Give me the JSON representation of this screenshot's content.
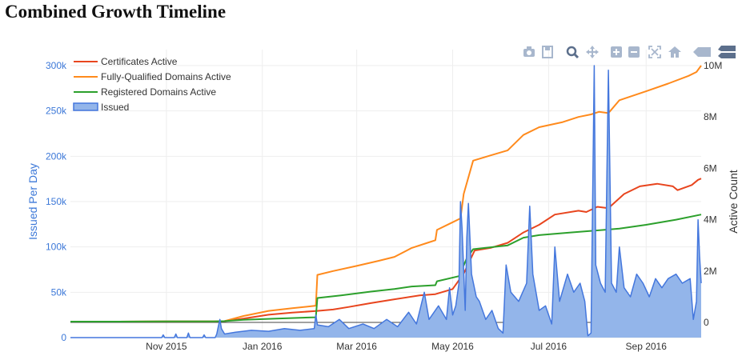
{
  "page": {
    "title": "Combined Growth Timeline"
  },
  "toolbar": {
    "buttons": [
      {
        "name": "camera-icon"
      },
      {
        "name": "save-icon"
      },
      {
        "name": "zoom-icon"
      },
      {
        "name": "pan-icon"
      },
      {
        "name": "zoom-in-icon"
      },
      {
        "name": "zoom-out-icon"
      },
      {
        "name": "autoscale-icon"
      },
      {
        "name": "home-icon"
      },
      {
        "name": "hover-closest-icon"
      },
      {
        "name": "hover-compare-icon"
      }
    ]
  },
  "chart_data": {
    "type": "line",
    "title": "",
    "xlabel": "",
    "ylabel": "Issued Per Day",
    "y2label": "Active Count",
    "x_range": [
      "2015-09-01",
      "2016-10-06"
    ],
    "ylim": [
      0,
      300000
    ],
    "y2lim": [
      -1000000,
      10000000
    ],
    "x_ticks": [
      {
        "date": "2015-11-01",
        "label": "Nov 2015"
      },
      {
        "date": "2016-01-01",
        "label": "Jan 2016"
      },
      {
        "date": "2016-03-01",
        "label": "Mar 2016"
      },
      {
        "date": "2016-05-01",
        "label": "May 2016"
      },
      {
        "date": "2016-07-01",
        "label": "Jul 2016"
      },
      {
        "date": "2016-09-01",
        "label": "Sep 2016"
      }
    ],
    "y_ticks": [
      {
        "value": 0,
        "label": "0"
      },
      {
        "value": 50000,
        "label": "50k"
      },
      {
        "value": 100000,
        "label": "100k"
      },
      {
        "value": 150000,
        "label": "150k"
      },
      {
        "value": 200000,
        "label": "200k"
      },
      {
        "value": 250000,
        "label": "250k"
      },
      {
        "value": 300000,
        "label": "300k"
      }
    ],
    "y2_ticks": [
      {
        "value": 0,
        "label": "0"
      },
      {
        "value": 2000000,
        "label": "2M"
      },
      {
        "value": 4000000,
        "label": "4M"
      },
      {
        "value": 6000000,
        "label": "6M"
      },
      {
        "value": 8000000,
        "label": "8M"
      },
      {
        "value": 10000000,
        "label": "10M"
      }
    ],
    "grid": true,
    "legend_position": "top-left",
    "series": [
      {
        "name": "Certificates Active",
        "axis": "y2",
        "color": "#e8451e",
        "points": [
          [
            "2015-09-01",
            0.03
          ],
          [
            "2015-10-01",
            0.03
          ],
          [
            "2015-11-01",
            0.04
          ],
          [
            "2015-12-01",
            0.04
          ],
          [
            "2015-12-08",
            0.05
          ],
          [
            "2015-12-20",
            0.15
          ],
          [
            "2016-01-05",
            0.3
          ],
          [
            "2016-01-20",
            0.38
          ],
          [
            "2016-02-05",
            0.45
          ],
          [
            "2016-02-15",
            0.5
          ],
          [
            "2016-02-25",
            0.6
          ],
          [
            "2016-03-10",
            0.75
          ],
          [
            "2016-03-25",
            0.9
          ],
          [
            "2016-04-10",
            1.05
          ],
          [
            "2016-04-20",
            1.1
          ],
          [
            "2016-05-01",
            1.3
          ],
          [
            "2016-05-08",
            1.9
          ],
          [
            "2016-05-15",
            2.8
          ],
          [
            "2016-05-25",
            2.9
          ],
          [
            "2016-06-05",
            3.1
          ],
          [
            "2016-06-15",
            3.5
          ],
          [
            "2016-06-25",
            3.8
          ],
          [
            "2016-07-05",
            4.2
          ],
          [
            "2016-07-20",
            4.35
          ],
          [
            "2016-07-25",
            4.3
          ],
          [
            "2016-08-01",
            4.5
          ],
          [
            "2016-08-08",
            4.45
          ],
          [
            "2016-08-18",
            5.0
          ],
          [
            "2016-08-28",
            5.3
          ],
          [
            "2016-09-08",
            5.4
          ],
          [
            "2016-09-18",
            5.3
          ],
          [
            "2016-09-21",
            5.15
          ],
          [
            "2016-09-30",
            5.35
          ],
          [
            "2016-10-04",
            5.55
          ],
          [
            "2016-10-06",
            5.6
          ]
        ]
      },
      {
        "name": "Fully-Qualified Domains Active",
        "axis": "y2",
        "color": "#ff8a1c",
        "points": [
          [
            "2015-09-01",
            0.03
          ],
          [
            "2015-10-01",
            0.03
          ],
          [
            "2015-11-01",
            0.04
          ],
          [
            "2015-12-01",
            0.04
          ],
          [
            "2015-12-08",
            0.05
          ],
          [
            "2015-12-20",
            0.25
          ],
          [
            "2016-01-05",
            0.45
          ],
          [
            "2016-01-20",
            0.55
          ],
          [
            "2016-02-04",
            0.65
          ],
          [
            "2016-02-05",
            1.85
          ],
          [
            "2016-02-15",
            2.0
          ],
          [
            "2016-03-01",
            2.2
          ],
          [
            "2016-03-15",
            2.4
          ],
          [
            "2016-03-25",
            2.55
          ],
          [
            "2016-04-05",
            2.9
          ],
          [
            "2016-04-15",
            3.1
          ],
          [
            "2016-04-20",
            3.2
          ],
          [
            "2016-04-21",
            3.6
          ],
          [
            "2016-05-01",
            3.9
          ],
          [
            "2016-05-06",
            4.05
          ],
          [
            "2016-05-08",
            5.0
          ],
          [
            "2016-05-14",
            6.3
          ],
          [
            "2016-05-25",
            6.5
          ],
          [
            "2016-06-05",
            6.7
          ],
          [
            "2016-06-10",
            7.0
          ],
          [
            "2016-06-15",
            7.3
          ],
          [
            "2016-06-25",
            7.6
          ],
          [
            "2016-07-10",
            7.8
          ],
          [
            "2016-07-20",
            8.0
          ],
          [
            "2016-07-28",
            8.1
          ],
          [
            "2016-08-02",
            8.2
          ],
          [
            "2016-08-08",
            8.15
          ],
          [
            "2016-08-15",
            8.65
          ],
          [
            "2016-09-01",
            9.0
          ],
          [
            "2016-09-15",
            9.3
          ],
          [
            "2016-09-28",
            9.6
          ],
          [
            "2016-10-03",
            9.75
          ],
          [
            "2016-10-06",
            10.0
          ]
        ]
      },
      {
        "name": "Registered Domains Active",
        "axis": "y2",
        "color": "#2ca02c",
        "points": [
          [
            "2015-09-01",
            0.03
          ],
          [
            "2015-10-01",
            0.03
          ],
          [
            "2015-11-01",
            0.04
          ],
          [
            "2015-12-01",
            0.04
          ],
          [
            "2015-12-08",
            0.05
          ],
          [
            "2015-12-20",
            0.1
          ],
          [
            "2016-01-10",
            0.15
          ],
          [
            "2016-02-04",
            0.2
          ],
          [
            "2016-02-05",
            0.95
          ],
          [
            "2016-02-20",
            1.05
          ],
          [
            "2016-03-10",
            1.2
          ],
          [
            "2016-03-25",
            1.3
          ],
          [
            "2016-04-05",
            1.4
          ],
          [
            "2016-04-20",
            1.45
          ],
          [
            "2016-04-21",
            1.6
          ],
          [
            "2016-05-05",
            1.8
          ],
          [
            "2016-05-10",
            2.5
          ],
          [
            "2016-05-14",
            2.85
          ],
          [
            "2016-06-05",
            3.0
          ],
          [
            "2016-06-15",
            3.3
          ],
          [
            "2016-06-25",
            3.4
          ],
          [
            "2016-07-15",
            3.5
          ],
          [
            "2016-08-05",
            3.6
          ],
          [
            "2016-08-15",
            3.65
          ],
          [
            "2016-09-01",
            3.8
          ],
          [
            "2016-09-20",
            4.0
          ],
          [
            "2016-10-06",
            4.2
          ]
        ]
      },
      {
        "name": "Issued",
        "axis": "y",
        "color": "#4477dd",
        "fill": "#93b5ea",
        "points": [
          [
            "2015-09-01",
            0
          ],
          [
            "2015-10-15",
            0
          ],
          [
            "2015-10-29",
            0
          ],
          [
            "2015-10-30",
            3000
          ],
          [
            "2015-10-31",
            0
          ],
          [
            "2015-11-06",
            0
          ],
          [
            "2015-11-07",
            4000
          ],
          [
            "2015-11-08",
            0
          ],
          [
            "2015-11-14",
            0
          ],
          [
            "2015-11-15",
            5000
          ],
          [
            "2015-11-16",
            0
          ],
          [
            "2015-11-24",
            0
          ],
          [
            "2015-11-25",
            3000
          ],
          [
            "2015-11-26",
            0
          ],
          [
            "2015-12-02",
            0
          ],
          [
            "2015-12-03",
            4000
          ],
          [
            "2015-12-04",
            12000
          ],
          [
            "2015-12-05",
            20000
          ],
          [
            "2015-12-06",
            10000
          ],
          [
            "2015-12-08",
            4000
          ],
          [
            "2015-12-15",
            6000
          ],
          [
            "2015-12-25",
            8000
          ],
          [
            "2016-01-05",
            7000
          ],
          [
            "2016-01-15",
            10000
          ],
          [
            "2016-01-25",
            8000
          ],
          [
            "2016-02-03",
            10000
          ],
          [
            "2016-02-04",
            25000
          ],
          [
            "2016-02-05",
            14000
          ],
          [
            "2016-02-12",
            12000
          ],
          [
            "2016-02-19",
            20000
          ],
          [
            "2016-02-25",
            10000
          ],
          [
            "2016-03-05",
            15000
          ],
          [
            "2016-03-12",
            10000
          ],
          [
            "2016-03-20",
            20000
          ],
          [
            "2016-03-27",
            12000
          ],
          [
            "2016-04-03",
            28000
          ],
          [
            "2016-04-08",
            15000
          ],
          [
            "2016-04-13",
            50000
          ],
          [
            "2016-04-16",
            20000
          ],
          [
            "2016-04-22",
            35000
          ],
          [
            "2016-04-27",
            20000
          ],
          [
            "2016-04-29",
            55000
          ],
          [
            "2016-05-01",
            25000
          ],
          [
            "2016-05-03",
            35000
          ],
          [
            "2016-05-05",
            60000
          ],
          [
            "2016-05-06",
            150000
          ],
          [
            "2016-05-07",
            120000
          ],
          [
            "2016-05-09",
            30000
          ],
          [
            "2016-05-10",
            110000
          ],
          [
            "2016-05-11",
            148000
          ],
          [
            "2016-05-13",
            70000
          ],
          [
            "2016-05-16",
            45000
          ],
          [
            "2016-05-18",
            40000
          ],
          [
            "2016-05-22",
            20000
          ],
          [
            "2016-05-26",
            30000
          ],
          [
            "2016-05-30",
            10000
          ],
          [
            "2016-06-02",
            5000
          ],
          [
            "2016-06-04",
            80000
          ],
          [
            "2016-06-07",
            50000
          ],
          [
            "2016-06-12",
            40000
          ],
          [
            "2016-06-17",
            60000
          ],
          [
            "2016-06-19",
            145000
          ],
          [
            "2016-06-21",
            70000
          ],
          [
            "2016-06-25",
            30000
          ],
          [
            "2016-06-29",
            35000
          ],
          [
            "2016-07-03",
            15000
          ],
          [
            "2016-07-05",
            100000
          ],
          [
            "2016-07-08",
            40000
          ],
          [
            "2016-07-13",
            70000
          ],
          [
            "2016-07-17",
            50000
          ],
          [
            "2016-07-21",
            60000
          ],
          [
            "2016-07-24",
            40000
          ],
          [
            "2016-07-26",
            2000
          ],
          [
            "2016-07-28",
            5000
          ],
          [
            "2016-07-30",
            300000
          ],
          [
            "2016-07-31",
            80000
          ],
          [
            "2016-08-03",
            60000
          ],
          [
            "2016-08-06",
            50000
          ],
          [
            "2016-08-08",
            295000
          ],
          [
            "2016-08-10",
            60000
          ],
          [
            "2016-08-13",
            50000
          ],
          [
            "2016-08-15",
            100000
          ],
          [
            "2016-08-18",
            55000
          ],
          [
            "2016-08-22",
            45000
          ],
          [
            "2016-08-26",
            70000
          ],
          [
            "2016-08-30",
            60000
          ],
          [
            "2016-09-03",
            45000
          ],
          [
            "2016-09-07",
            65000
          ],
          [
            "2016-09-11",
            55000
          ],
          [
            "2016-09-15",
            65000
          ],
          [
            "2016-09-20",
            70000
          ],
          [
            "2016-09-24",
            60000
          ],
          [
            "2016-09-29",
            65000
          ],
          [
            "2016-10-01",
            20000
          ],
          [
            "2016-10-03",
            40000
          ],
          [
            "2016-10-04",
            130000
          ],
          [
            "2016-10-05",
            90000
          ],
          [
            "2016-10-06",
            60000
          ]
        ]
      }
    ]
  }
}
